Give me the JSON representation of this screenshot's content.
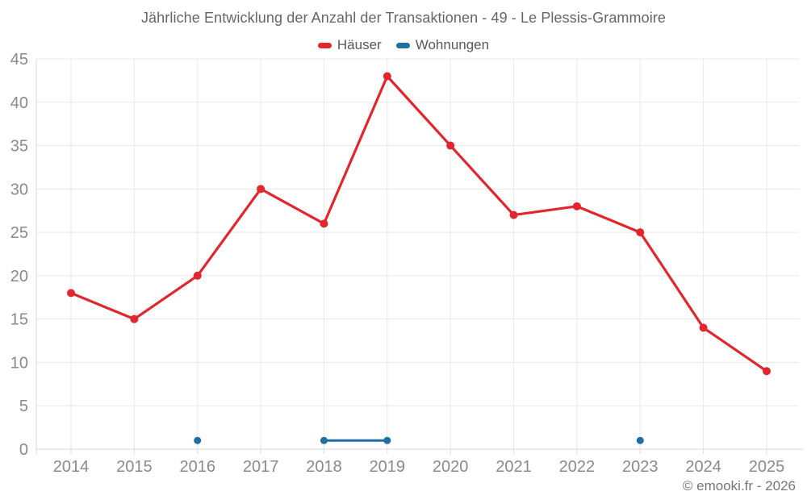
{
  "chart_data": {
    "type": "line",
    "title": "Jährliche Entwicklung der Anzahl der Transaktionen - 49 - Le Plessis-Grammoire",
    "categories": [
      "2014",
      "2015",
      "2016",
      "2017",
      "2018",
      "2019",
      "2020",
      "2021",
      "2022",
      "2023",
      "2024",
      "2025"
    ],
    "series": [
      {
        "name": "Häuser",
        "color": "#e1262d",
        "values": [
          18,
          15,
          20,
          30,
          26,
          43,
          35,
          27,
          28,
          25,
          14,
          9
        ]
      },
      {
        "name": "Wohnungen",
        "color": "#1d6fa4",
        "values": [
          null,
          null,
          1,
          null,
          1,
          1,
          null,
          null,
          null,
          1,
          null,
          null
        ]
      }
    ],
    "xlabel": "",
    "ylabel": "",
    "ylim": [
      0,
      45
    ],
    "yticks": [
      0,
      5,
      10,
      15,
      20,
      25,
      30,
      35,
      40,
      45
    ],
    "grid": true,
    "legend_position": "top"
  },
  "footer": {
    "copyright": "© emooki.fr - 2026"
  }
}
